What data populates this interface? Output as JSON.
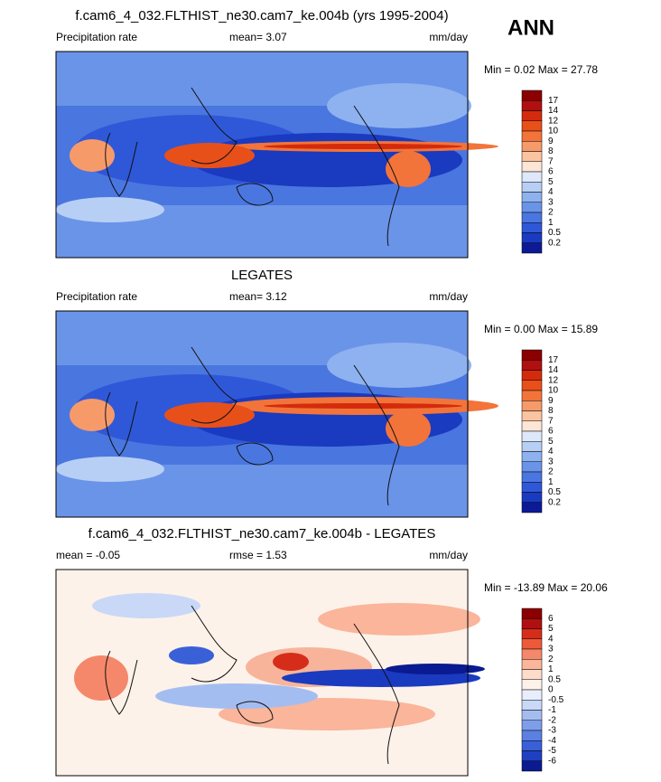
{
  "season": "ANN",
  "panels": [
    {
      "title": "f.cam6_4_032.FLTHIST_ne30.cam7_ke.004b (yrs 1995-2004)",
      "left_label": "Precipitation rate",
      "center_label": "mean=   3.07",
      "units": "mm/day",
      "min_max": "Min =   0.02 Max =  27.78",
      "colorbar": {
        "labels": [
          "17",
          "14",
          "12",
          "10",
          "9",
          "8",
          "7",
          "6",
          "5",
          "4",
          "3",
          "2",
          "1",
          "0.5",
          "0.2"
        ],
        "colors": [
          "#8b0000",
          "#b01010",
          "#d42b0c",
          "#e8501a",
          "#f2743a",
          "#f79a6a",
          "#fbc4a0",
          "#fde6d6",
          "#dde8fa",
          "#b8cff5",
          "#8eb2ef",
          "#6a94e8",
          "#4a76e0",
          "#2f58d8",
          "#1a3ac0",
          "#0c1a96"
        ]
      }
    },
    {
      "title": "LEGATES",
      "left_label": "Precipitation rate",
      "center_label": "mean=   3.12",
      "units": "mm/day",
      "min_max": "Min =   0.00 Max =  15.89",
      "colorbar": {
        "labels": [
          "17",
          "14",
          "12",
          "10",
          "9",
          "8",
          "7",
          "6",
          "5",
          "4",
          "3",
          "2",
          "1",
          "0.5",
          "0.2"
        ],
        "colors": [
          "#8b0000",
          "#b01010",
          "#d42b0c",
          "#e8501a",
          "#f2743a",
          "#f79a6a",
          "#fbc4a0",
          "#fde6d6",
          "#dde8fa",
          "#b8cff5",
          "#8eb2ef",
          "#6a94e8",
          "#4a76e0",
          "#2f58d8",
          "#1a3ac0",
          "#0c1a96"
        ]
      }
    },
    {
      "title": "f.cam6_4_032.FLTHIST_ne30.cam7_ke.004b - LEGATES",
      "left_label": "mean =  -0.05",
      "center_label": "rmse =   1.53",
      "units": "mm/day",
      "min_max": "Min = -13.89 Max =  20.06",
      "colorbar": {
        "labels": [
          "6",
          "5",
          "4",
          "3",
          "2",
          "1",
          "0.5",
          "0",
          "-0.5",
          "-1",
          "-2",
          "-3",
          "-4",
          "-5",
          "-6"
        ],
        "colors": [
          "#8b0000",
          "#b01010",
          "#d62d1a",
          "#ec5a3a",
          "#f5886a",
          "#fab59a",
          "#fddccc",
          "#fdf2ea",
          "#e8eefc",
          "#c9d8f7",
          "#a4bdf1",
          "#7d9eea",
          "#5a80e2",
          "#3a60d8",
          "#1f40c0",
          "#0a1a90"
        ]
      }
    }
  ]
}
